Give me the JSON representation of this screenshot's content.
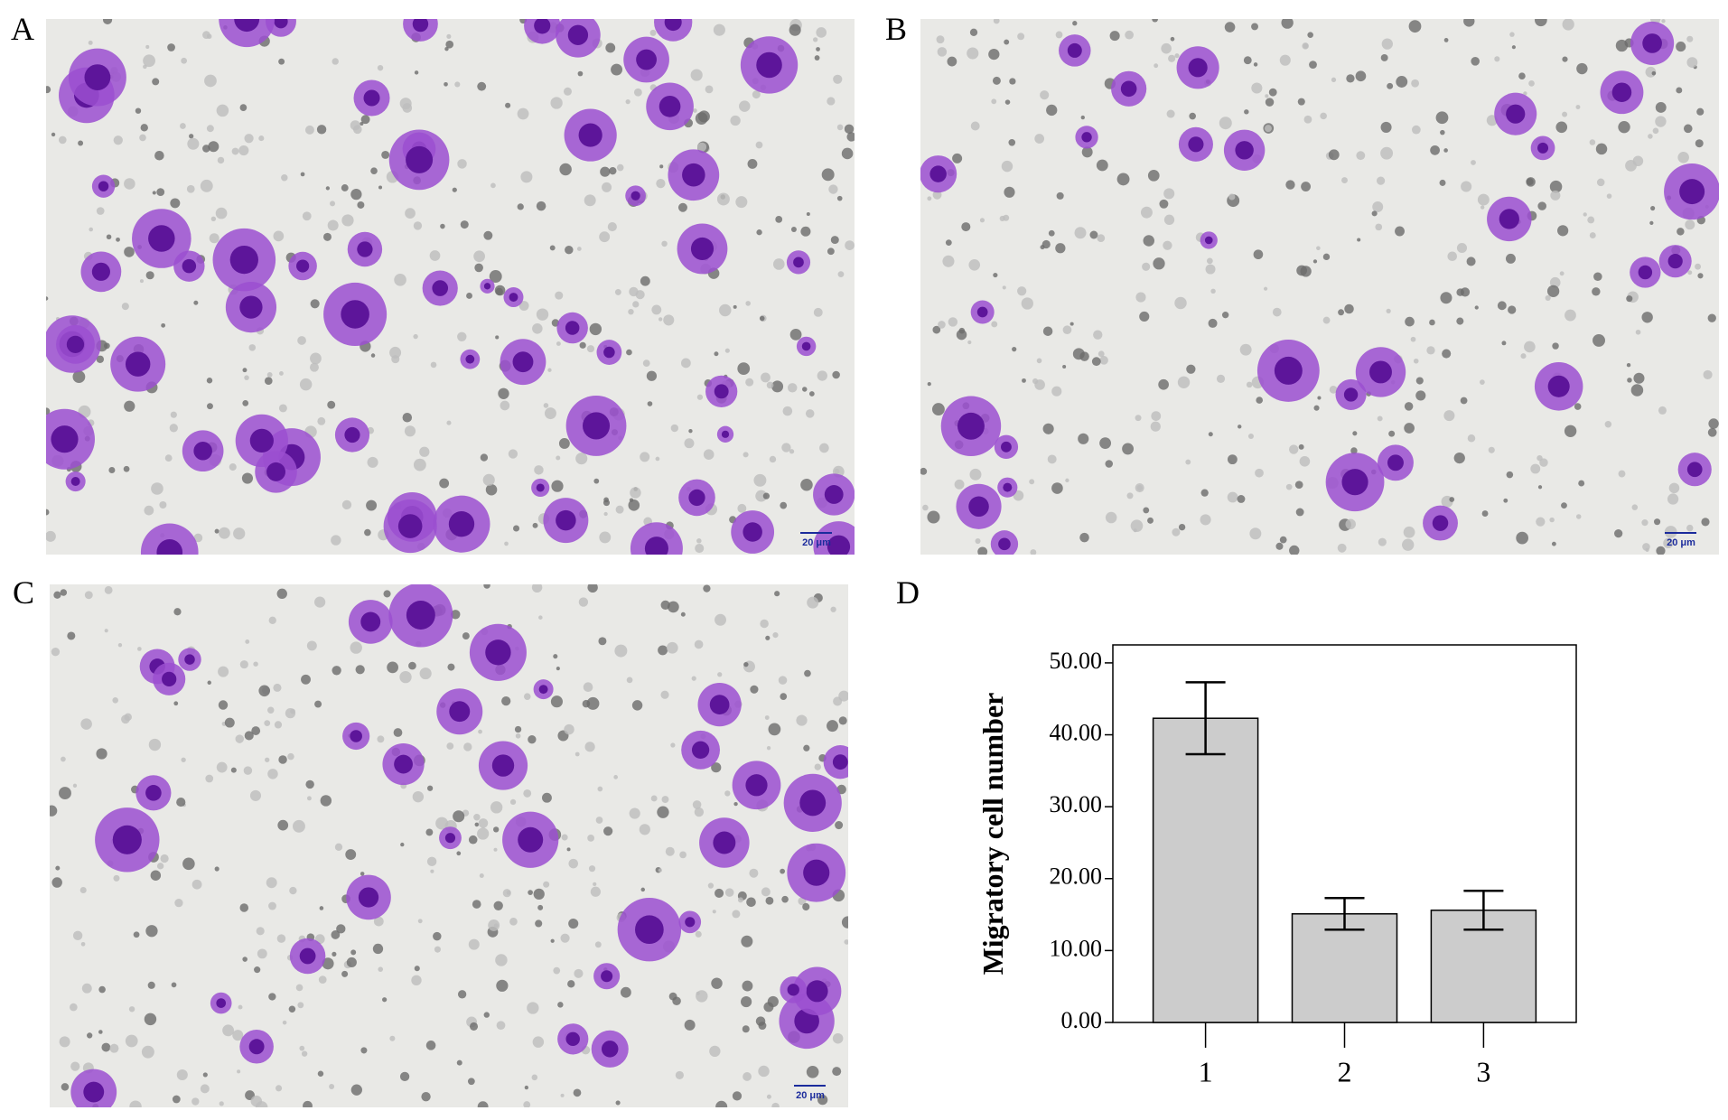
{
  "panels": [
    {
      "label": "A",
      "scale_bar": "20 μm"
    },
    {
      "label": "B",
      "scale_bar": "20 μm"
    },
    {
      "label": "C",
      "scale_bar": "20 μm"
    }
  ],
  "chart_label": "D",
  "chart_data": {
    "type": "bar",
    "y_label": "Migratory cell number",
    "categories": [
      "1",
      "2",
      "3"
    ],
    "values": [
      42.3,
      15.1,
      15.6
    ],
    "errors": [
      5.0,
      2.2,
      2.7
    ],
    "color": "#cccccc",
    "ylim": [
      0,
      52.5
    ],
    "yticks": [
      {
        "value": 0,
        "label": "0.00"
      },
      {
        "value": 10,
        "label": "10.00"
      },
      {
        "value": 20,
        "label": "20.00"
      },
      {
        "value": 30,
        "label": "30.00"
      },
      {
        "value": 40,
        "label": "40.00"
      },
      {
        "value": 50,
        "label": "50.00"
      }
    ]
  }
}
